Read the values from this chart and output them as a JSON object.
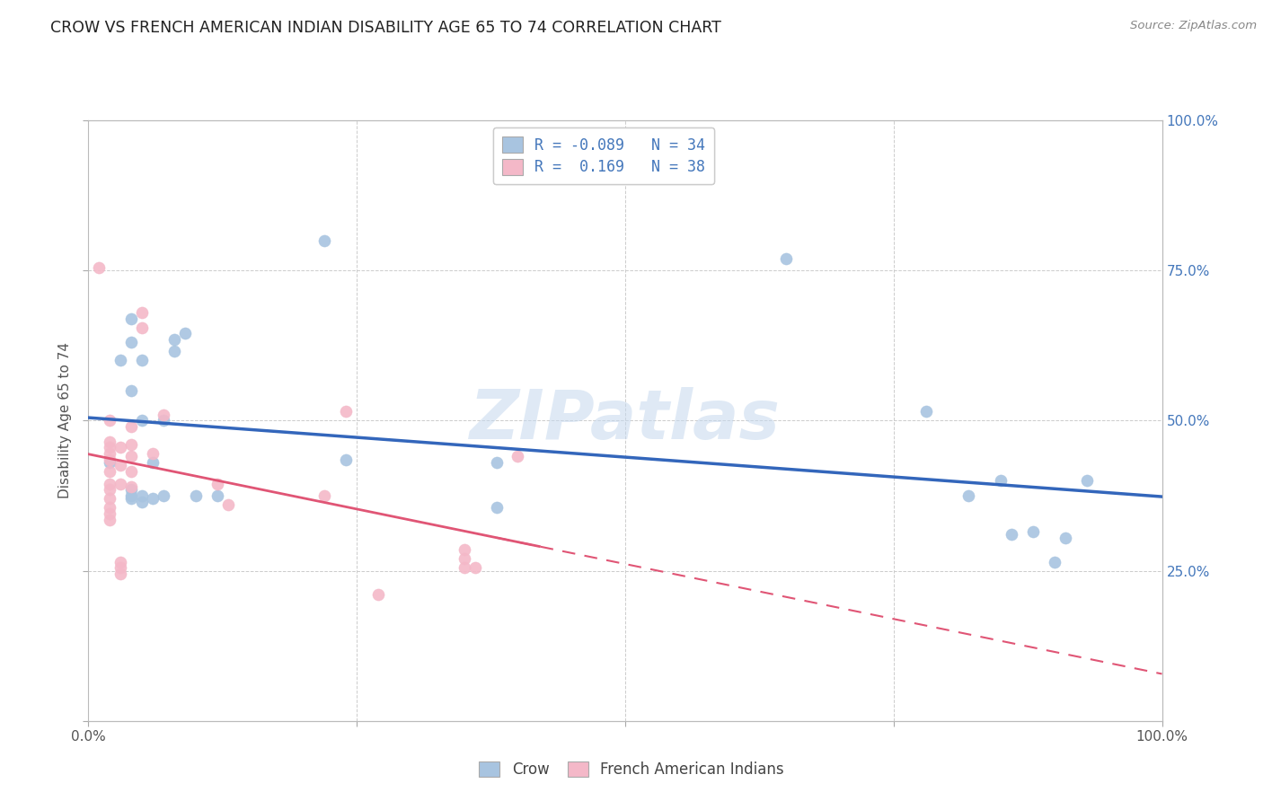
{
  "title": "CROW VS FRENCH AMERICAN INDIAN DISABILITY AGE 65 TO 74 CORRELATION CHART",
  "source": "Source: ZipAtlas.com",
  "ylabel": "Disability Age 65 to 74",
  "xlabel": "",
  "xlim": [
    0,
    1.0
  ],
  "ylim": [
    0,
    1.0
  ],
  "crow_R": -0.089,
  "crow_N": 34,
  "fai_R": 0.169,
  "fai_N": 38,
  "crow_color": "#a8c4e0",
  "fai_color": "#f4b8c8",
  "crow_line_color": "#3366bb",
  "fai_line_color": "#e05575",
  "watermark": "ZIPatlas",
  "crow_points": [
    [
      0.02,
      0.43
    ],
    [
      0.03,
      0.6
    ],
    [
      0.04,
      0.55
    ],
    [
      0.04,
      0.63
    ],
    [
      0.04,
      0.67
    ],
    [
      0.04,
      0.385
    ],
    [
      0.04,
      0.375
    ],
    [
      0.04,
      0.37
    ],
    [
      0.05,
      0.365
    ],
    [
      0.05,
      0.375
    ],
    [
      0.05,
      0.5
    ],
    [
      0.05,
      0.6
    ],
    [
      0.06,
      0.43
    ],
    [
      0.06,
      0.37
    ],
    [
      0.07,
      0.375
    ],
    [
      0.07,
      0.5
    ],
    [
      0.08,
      0.615
    ],
    [
      0.08,
      0.635
    ],
    [
      0.09,
      0.645
    ],
    [
      0.1,
      0.375
    ],
    [
      0.12,
      0.375
    ],
    [
      0.22,
      0.8
    ],
    [
      0.24,
      0.435
    ],
    [
      0.38,
      0.43
    ],
    [
      0.38,
      0.355
    ],
    [
      0.65,
      0.77
    ],
    [
      0.78,
      0.515
    ],
    [
      0.82,
      0.375
    ],
    [
      0.85,
      0.4
    ],
    [
      0.86,
      0.31
    ],
    [
      0.88,
      0.315
    ],
    [
      0.9,
      0.265
    ],
    [
      0.91,
      0.305
    ],
    [
      0.93,
      0.4
    ]
  ],
  "fai_points": [
    [
      0.01,
      0.755
    ],
    [
      0.02,
      0.5
    ],
    [
      0.02,
      0.465
    ],
    [
      0.02,
      0.455
    ],
    [
      0.02,
      0.445
    ],
    [
      0.02,
      0.435
    ],
    [
      0.02,
      0.415
    ],
    [
      0.02,
      0.395
    ],
    [
      0.02,
      0.385
    ],
    [
      0.02,
      0.37
    ],
    [
      0.02,
      0.355
    ],
    [
      0.02,
      0.345
    ],
    [
      0.02,
      0.335
    ],
    [
      0.03,
      0.455
    ],
    [
      0.03,
      0.425
    ],
    [
      0.03,
      0.395
    ],
    [
      0.03,
      0.265
    ],
    [
      0.03,
      0.255
    ],
    [
      0.03,
      0.245
    ],
    [
      0.04,
      0.49
    ],
    [
      0.04,
      0.46
    ],
    [
      0.04,
      0.44
    ],
    [
      0.04,
      0.415
    ],
    [
      0.04,
      0.39
    ],
    [
      0.05,
      0.68
    ],
    [
      0.05,
      0.655
    ],
    [
      0.06,
      0.445
    ],
    [
      0.07,
      0.51
    ],
    [
      0.12,
      0.395
    ],
    [
      0.13,
      0.36
    ],
    [
      0.22,
      0.375
    ],
    [
      0.24,
      0.515
    ],
    [
      0.27,
      0.21
    ],
    [
      0.35,
      0.285
    ],
    [
      0.35,
      0.27
    ],
    [
      0.35,
      0.255
    ],
    [
      0.36,
      0.255
    ],
    [
      0.4,
      0.44
    ]
  ]
}
